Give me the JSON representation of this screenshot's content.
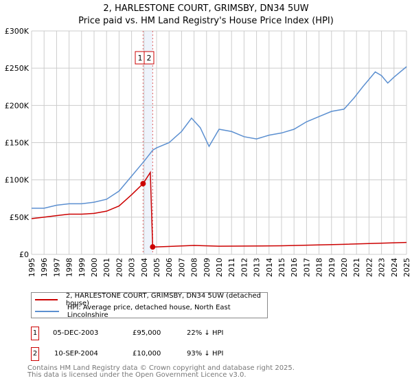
{
  "title_line1": "2, HARLESTONE COURT, GRIMSBY, DN34 5UW",
  "title_line2": "Price paid vs. HM Land Registry's House Price Index (HPI)",
  "chart_data": {
    "type": "line",
    "title": "2, HARLESTONE COURT, GRIMSBY, DN34 5UW — Price paid vs. HM Land Registry's House Price Index (HPI)",
    "xlim": [
      1995,
      2025
    ],
    "ylim": [
      0,
      300000
    ],
    "yticks": [
      0,
      50000,
      100000,
      150000,
      200000,
      250000,
      300000
    ],
    "ytick_labels": [
      "£0",
      "£50K",
      "£100K",
      "£150K",
      "£200K",
      "£250K",
      "£300K"
    ],
    "xticks": [
      1995,
      1996,
      1997,
      1998,
      1999,
      2000,
      2001,
      2002,
      2003,
      2004,
      2005,
      2006,
      2007,
      2008,
      2009,
      2010,
      2011,
      2012,
      2013,
      2014,
      2015,
      2016,
      2017,
      2018,
      2019,
      2020,
      2021,
      2022,
      2023,
      2024,
      2025
    ],
    "grid": true,
    "series": [
      {
        "name": "2, HARLESTONE COURT, GRIMSBY, DN34 5UW (detached house)",
        "color": "#cc0000",
        "x": [
          1995,
          1996,
          1997,
          1998,
          1999,
          2000,
          2001,
          2002,
          2003,
          2003.92,
          2004.5,
          2004.69,
          2005,
          2008,
          2010,
          2015,
          2020,
          2025
        ],
        "y": [
          48000,
          50000,
          52000,
          54000,
          54000,
          55000,
          58000,
          65000,
          80000,
          95000,
          110000,
          10000,
          10000,
          12000,
          11000,
          11500,
          13500,
          16000
        ]
      },
      {
        "name": "HPI: Average price, detached house, North East Lincolnshire",
        "color": "#5b8fd0",
        "x": [
          1995,
          1996,
          1997,
          1998,
          1999,
          2000,
          2001,
          2002,
          2003,
          2004,
          2004.7,
          2005,
          2006,
          2007,
          2007.8,
          2008.5,
          2009.2,
          2010,
          2011,
          2012,
          2013,
          2014,
          2015,
          2016,
          2017,
          2018,
          2019,
          2020,
          2020.8,
          2021.5,
          2022.5,
          2023,
          2023.5,
          2024,
          2025
        ],
        "y": [
          62000,
          62000,
          66000,
          68000,
          68000,
          70000,
          74000,
          85000,
          105000,
          125000,
          140000,
          143000,
          150000,
          165000,
          183000,
          170000,
          145000,
          168000,
          165000,
          158000,
          155000,
          160000,
          163000,
          168000,
          178000,
          185000,
          192000,
          195000,
          210000,
          225000,
          245000,
          240000,
          230000,
          238000,
          252000
        ]
      }
    ],
    "sales": [
      {
        "label": "1",
        "x": 2003.92,
        "y": 95000
      },
      {
        "label": "2",
        "x": 2004.69,
        "y": 10000
      }
    ]
  },
  "legend": {
    "items": [
      {
        "label": "2, HARLESTONE COURT, GRIMSBY, DN34 5UW (detached house)",
        "color": "#cc0000"
      },
      {
        "label": "HPI: Average price, detached house, North East Lincolnshire",
        "color": "#5b8fd0"
      }
    ]
  },
  "transactions": [
    {
      "num": "1",
      "date": "05-DEC-2003",
      "price": "£95,000",
      "hpi": "22% ↓ HPI"
    },
    {
      "num": "2",
      "date": "10-SEP-2004",
      "price": "£10,000",
      "hpi": "93% ↓ HPI"
    }
  ],
  "footer": {
    "line1": "Contains HM Land Registry data © Crown copyright and database right 2025.",
    "line2": "This data is licensed under the Open Government Licence v3.0."
  }
}
